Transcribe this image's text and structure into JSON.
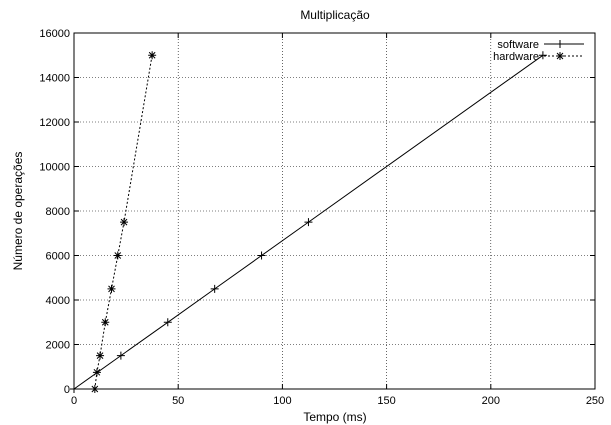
{
  "chart_data": {
    "type": "line",
    "title": "Multiplicação",
    "xlabel": "Tempo (ms)",
    "ylabel": "Número de operações",
    "xlim": [
      0,
      250
    ],
    "ylim": [
      0,
      16000
    ],
    "xticks": [
      0,
      50,
      100,
      150,
      200,
      250
    ],
    "yticks": [
      0,
      2000,
      4000,
      6000,
      8000,
      10000,
      12000,
      14000,
      16000
    ],
    "grid": true,
    "legend_position": "top-right",
    "series": [
      {
        "name": "software",
        "marker": "+",
        "line_style": "solid",
        "x": [
          0,
          22.5,
          45,
          67.5,
          90,
          112.5,
          225
        ],
        "y": [
          0,
          1500,
          3000,
          4500,
          6000,
          7500,
          15000
        ]
      },
      {
        "name": "hardware",
        "marker": "*",
        "line_style": "dotted",
        "x": [
          10,
          11,
          12.5,
          15,
          18,
          21,
          24,
          37.5
        ],
        "y": [
          0,
          750,
          1500,
          3000,
          4500,
          6000,
          7500,
          15000
        ]
      }
    ]
  }
}
